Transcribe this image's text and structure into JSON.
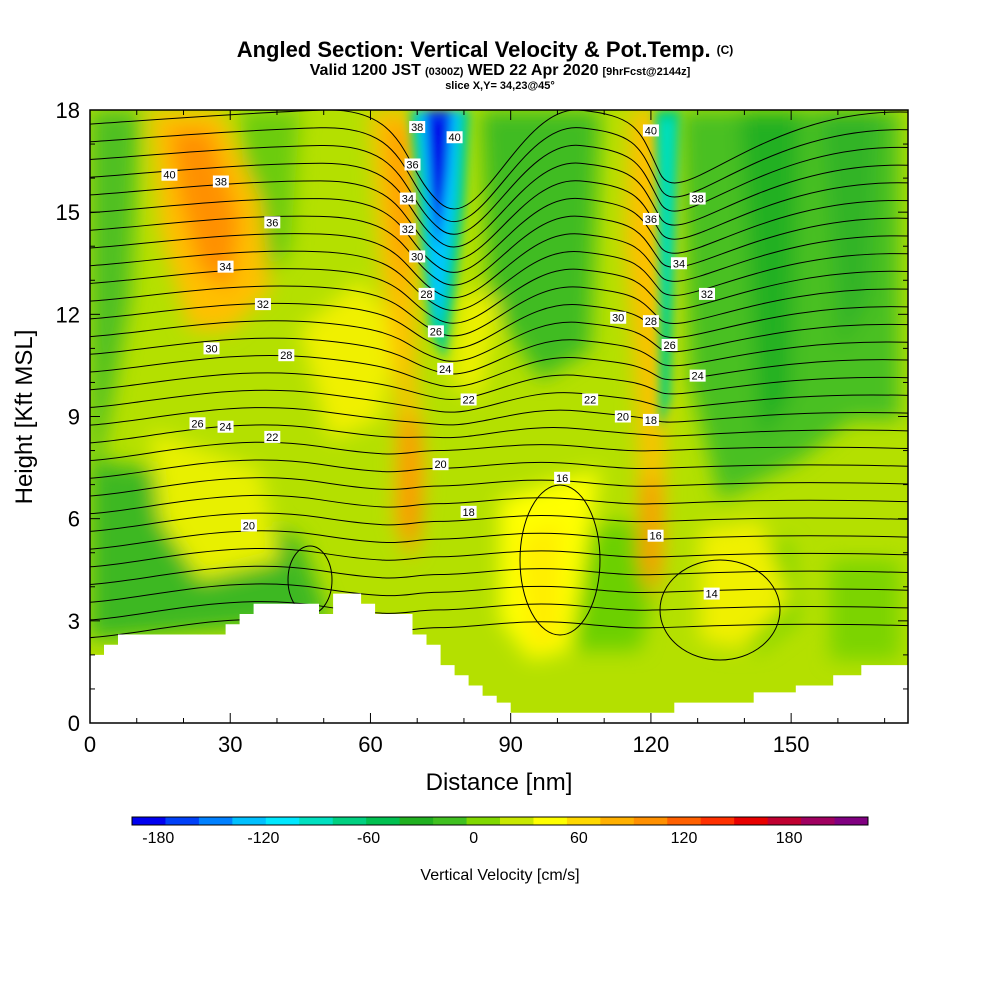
{
  "title": {
    "main": "Angled Section: Vertical Velocity & Pot.Temp.",
    "main_suffix": "(C)",
    "valid_prefix": "Valid 1200 JST",
    "valid_utc": "(0300Z)",
    "valid_date": "WED 22 Apr 2020",
    "forecast": "[9hrFcst@2144z]",
    "slice": "slice X,Y= 34,23@45°"
  },
  "chart_data": {
    "type": "heatmap",
    "xlabel": "Distance [nm]",
    "ylabel": "Height [Kft MSL]",
    "xlim": [
      0,
      175
    ],
    "ylim": [
      0,
      18
    ],
    "x_ticks": [
      "0",
      "30",
      "60",
      "90",
      "120",
      "150"
    ],
    "x_tick_values": [
      0,
      30,
      60,
      90,
      120,
      150
    ],
    "y_ticks": [
      "0",
      "3",
      "6",
      "9",
      "12",
      "15",
      "18"
    ],
    "y_tick_values": [
      0,
      3,
      6,
      9,
      12,
      15,
      18
    ],
    "colorbar": {
      "label": "Vertical Velocity [cm/s]",
      "ticks": [
        "-180",
        "-120",
        "-60",
        "0",
        "60",
        "120",
        "180"
      ],
      "tick_values": [
        -180,
        -120,
        -60,
        0,
        60,
        120,
        180
      ],
      "range": [
        -195,
        225
      ],
      "colors": [
        "#0000f0",
        "#0040f8",
        "#0080ff",
        "#00c0ff",
        "#00e8ff",
        "#00e0c0",
        "#00d080",
        "#00c050",
        "#20b020",
        "#40c020",
        "#80d800",
        "#c8e800",
        "#ffff00",
        "#ffd800",
        "#ffb000",
        "#ff9000",
        "#ff6000",
        "#ff3000",
        "#e80000",
        "#c00030",
        "#a00060",
        "#800080"
      ]
    },
    "terrain_kft": [
      [
        0,
        2.0
      ],
      [
        3,
        2.0
      ],
      [
        3,
        2.3
      ],
      [
        6,
        2.3
      ],
      [
        6,
        2.6
      ],
      [
        15,
        2.6
      ],
      [
        15,
        2.6
      ],
      [
        29,
        2.6
      ],
      [
        29,
        2.9
      ],
      [
        32,
        2.9
      ],
      [
        32,
        3.2
      ],
      [
        35,
        3.2
      ],
      [
        35,
        3.5
      ],
      [
        38,
        3.5
      ],
      [
        38,
        3.5
      ],
      [
        49,
        3.5
      ],
      [
        49,
        3.2
      ],
      [
        52,
        3.2
      ],
      [
        52,
        3.8
      ],
      [
        58,
        3.8
      ],
      [
        58,
        3.5
      ],
      [
        61,
        3.5
      ],
      [
        61,
        3.2
      ],
      [
        69,
        3.2
      ],
      [
        69,
        2.6
      ],
      [
        72,
        2.6
      ],
      [
        72,
        2.3
      ],
      [
        75,
        2.3
      ],
      [
        75,
        1.7
      ],
      [
        78,
        1.7
      ],
      [
        78,
        1.4
      ],
      [
        81,
        1.4
      ],
      [
        81,
        1.1
      ],
      [
        84,
        1.1
      ],
      [
        84,
        0.8
      ],
      [
        87,
        0.8
      ],
      [
        87,
        0.6
      ],
      [
        90,
        0.6
      ],
      [
        90,
        0.3
      ],
      [
        119,
        0.3
      ],
      [
        119,
        0.3
      ],
      [
        125,
        0.3
      ],
      [
        125,
        0.6
      ],
      [
        142,
        0.6
      ],
      [
        142,
        0.9
      ],
      [
        151,
        0.9
      ],
      [
        151,
        1.1
      ],
      [
        159,
        1.1
      ],
      [
        159,
        1.4
      ],
      [
        165,
        1.4
      ],
      [
        165,
        1.7
      ],
      [
        175,
        1.7
      ]
    ],
    "pot_temp_labels": [
      {
        "x": 17,
        "y": 16.1,
        "v": "40"
      },
      {
        "x": 28,
        "y": 15.9,
        "v": "38"
      },
      {
        "x": 39,
        "y": 14.7,
        "v": "36"
      },
      {
        "x": 29,
        "y": 13.4,
        "v": "34"
      },
      {
        "x": 37,
        "y": 12.3,
        "v": "32"
      },
      {
        "x": 26,
        "y": 11.0,
        "v": "30"
      },
      {
        "x": 42,
        "y": 10.8,
        "v": "28"
      },
      {
        "x": 23,
        "y": 8.8,
        "v": "26"
      },
      {
        "x": 29,
        "y": 8.7,
        "v": "24"
      },
      {
        "x": 39,
        "y": 8.4,
        "v": "22"
      },
      {
        "x": 34,
        "y": 5.8,
        "v": "20"
      },
      {
        "x": 70,
        "y": 17.5,
        "v": "38"
      },
      {
        "x": 78,
        "y": 17.2,
        "v": "40"
      },
      {
        "x": 69,
        "y": 16.4,
        "v": "36"
      },
      {
        "x": 68,
        "y": 15.4,
        "v": "34"
      },
      {
        "x": 68,
        "y": 14.5,
        "v": "32"
      },
      {
        "x": 70,
        "y": 13.7,
        "v": "30"
      },
      {
        "x": 72,
        "y": 12.6,
        "v": "28"
      },
      {
        "x": 74,
        "y": 11.5,
        "v": "26"
      },
      {
        "x": 76,
        "y": 10.4,
        "v": "24"
      },
      {
        "x": 81,
        "y": 9.5,
        "v": "22"
      },
      {
        "x": 75,
        "y": 7.6,
        "v": "20"
      },
      {
        "x": 81,
        "y": 6.2,
        "v": "18"
      },
      {
        "x": 120,
        "y": 17.4,
        "v": "40"
      },
      {
        "x": 130,
        "y": 15.4,
        "v": "38"
      },
      {
        "x": 120,
        "y": 14.8,
        "v": "36"
      },
      {
        "x": 126,
        "y": 13.5,
        "v": "34"
      },
      {
        "x": 132,
        "y": 12.6,
        "v": "32"
      },
      {
        "x": 113,
        "y": 11.9,
        "v": "30"
      },
      {
        "x": 120,
        "y": 11.8,
        "v": "28"
      },
      {
        "x": 124,
        "y": 11.1,
        "v": "26"
      },
      {
        "x": 130,
        "y": 10.2,
        "v": "24"
      },
      {
        "x": 107,
        "y": 9.5,
        "v": "22"
      },
      {
        "x": 114,
        "y": 9.0,
        "v": "20"
      },
      {
        "x": 120,
        "y": 8.9,
        "v": "18"
      },
      {
        "x": 101,
        "y": 7.2,
        "v": "16"
      },
      {
        "x": 121,
        "y": 5.5,
        "v": "16"
      },
      {
        "x": 133,
        "y": 3.8,
        "v": "14"
      }
    ]
  }
}
